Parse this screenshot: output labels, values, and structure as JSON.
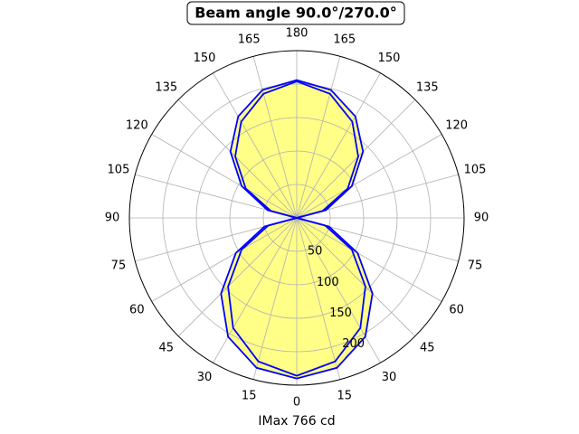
{
  "chart_data": {
    "type": "polar",
    "title": "Beam angle 90.0°/270.0°",
    "xlabel": "IMax 766 cd",
    "theta": [
      0,
      15,
      30,
      45,
      60,
      75,
      90,
      105,
      120,
      135,
      150,
      165,
      180,
      195,
      210,
      225,
      240,
      255,
      270,
      285,
      300,
      315,
      330,
      345,
      360
    ],
    "series": [
      {
        "color": "#0000ff",
        "fill": "#ffff88",
        "values": [
          240,
          232,
          205,
          160,
          105,
          50,
          0,
          45,
          95,
          140,
          175,
          198,
          206,
          198,
          175,
          140,
          95,
          45,
          0,
          50,
          105,
          160,
          205,
          232,
          240
        ]
      },
      {
        "color": "#0000ff",
        "values": [
          236,
          222,
          190,
          145,
          95,
          44,
          0,
          40,
          88,
          130,
          166,
          192,
          204,
          192,
          166,
          130,
          88,
          40,
          0,
          44,
          95,
          145,
          190,
          222,
          236
        ]
      }
    ],
    "rlim": [
      0,
      250
    ],
    "rticks": [
      50,
      100,
      150,
      200
    ],
    "thetaticks": [
      0,
      15,
      30,
      45,
      60,
      75,
      90,
      105,
      120,
      135,
      150,
      165,
      180,
      {
        "value": 195,
        "label": "165"
      },
      {
        "value": 210,
        "label": "150"
      },
      {
        "value": 225,
        "label": "135"
      },
      {
        "value": 240,
        "label": "120"
      },
      {
        "value": 255,
        "label": "105"
      },
      {
        "value": 270,
        "label": "90"
      },
      {
        "value": 285,
        "label": "75"
      },
      {
        "value": 300,
        "label": "60"
      },
      {
        "value": 315,
        "label": "45"
      },
      {
        "value": 330,
        "label": "30"
      },
      {
        "value": 345,
        "label": "15"
      }
    ],
    "grid": true
  }
}
